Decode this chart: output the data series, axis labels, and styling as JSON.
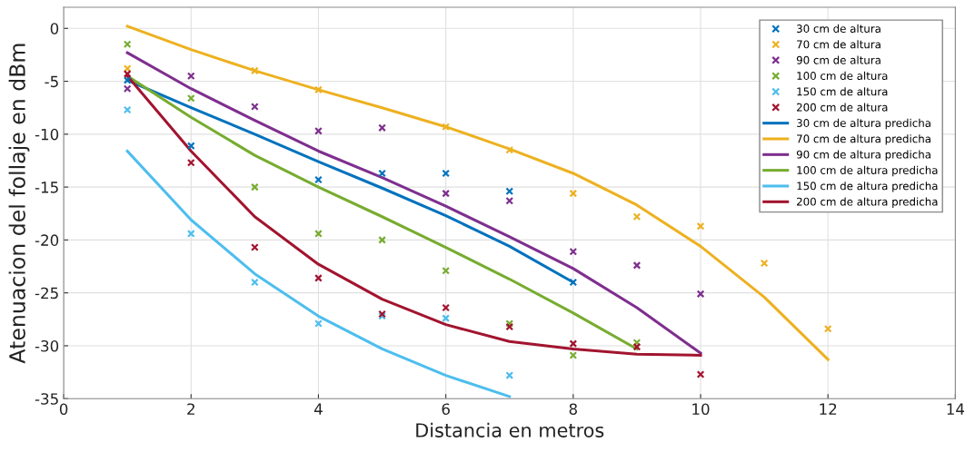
{
  "chart_data": {
    "type": "scatter",
    "xlabel": "Distancia en metros",
    "ylabel": "Atenuacion del follaje en dBm",
    "xlim": [
      0,
      14
    ],
    "xticks": [
      0,
      2,
      4,
      6,
      8,
      10,
      12,
      14
    ],
    "ylim": [
      -35,
      2
    ],
    "yticks": [
      0,
      -5,
      -10,
      -15,
      -20,
      -25,
      -30,
      -35
    ],
    "grid": true,
    "legend": "top right",
    "series": [
      {
        "name": "30 cm de altura",
        "marker": "cross",
        "color": "#0072bd",
        "x": [
          1,
          2,
          4,
          5,
          6,
          7,
          8
        ],
        "values": [
          -4.9,
          -11.1,
          -14.3,
          -13.7,
          -13.7,
          -15.4,
          -24.0
        ]
      },
      {
        "name": "70 cm de altura",
        "marker": "cross",
        "color": "#edb120",
        "x": [
          1,
          3,
          4,
          6,
          7,
          8,
          9,
          10,
          11,
          12
        ],
        "values": [
          -3.8,
          -4.0,
          -5.8,
          -9.3,
          -11.5,
          -15.6,
          -17.8,
          -18.7,
          -22.2,
          -28.4
        ]
      },
      {
        "name": "90 cm de altura",
        "marker": "cross",
        "color": "#7e2f8e",
        "x": [
          1,
          2,
          3,
          4,
          5,
          6,
          7,
          8,
          9,
          10
        ],
        "values": [
          -5.7,
          -4.5,
          -7.4,
          -9.7,
          -9.4,
          -15.6,
          -16.3,
          -21.1,
          -22.4,
          -25.1
        ]
      },
      {
        "name": "100 cm de altura",
        "marker": "cross",
        "color": "#77ac30",
        "x": [
          1,
          2,
          3,
          4,
          5,
          6,
          7,
          8,
          9
        ],
        "values": [
          -1.5,
          -6.6,
          -15.0,
          -19.4,
          -20.0,
          -22.9,
          -27.9,
          -30.9,
          -29.7
        ]
      },
      {
        "name": "150 cm de altura",
        "marker": "cross",
        "color": "#4dbeee",
        "x": [
          1,
          2,
          3,
          4,
          5,
          6,
          7
        ],
        "values": [
          -7.7,
          -19.4,
          -24.0,
          -27.9,
          -27.2,
          -27.4,
          -32.8
        ]
      },
      {
        "name": "200 cm de altura",
        "marker": "cross",
        "color": "#a2142f",
        "x": [
          1,
          2,
          3,
          4,
          5,
          6,
          7,
          8,
          9,
          10
        ],
        "values": [
          -4.3,
          -12.7,
          -20.7,
          -23.6,
          -27.0,
          -26.4,
          -28.2,
          -29.8,
          -30.1,
          -32.7
        ]
      },
      {
        "name": "30 cm de altura predicha",
        "type": "line",
        "color": "#0072bd",
        "x": [
          1,
          2,
          3,
          4,
          5,
          6,
          7,
          8
        ],
        "values": [
          -4.9,
          -7.5,
          -10.0,
          -12.6,
          -15.1,
          -17.7,
          -20.6,
          -24.0
        ]
      },
      {
        "name": "70 cm de altura predicha",
        "type": "line",
        "color": "#edb120",
        "x": [
          1,
          2,
          3,
          4,
          5,
          6,
          7,
          8,
          9,
          10,
          11,
          12
        ],
        "values": [
          0.2,
          -2.0,
          -4.0,
          -5.8,
          -7.5,
          -9.3,
          -11.4,
          -13.7,
          -16.7,
          -20.6,
          -25.4,
          -31.3
        ]
      },
      {
        "name": "90 cm de altura predicha",
        "type": "line",
        "color": "#7e2f8e",
        "x": [
          1,
          2,
          3,
          4,
          5,
          6,
          7,
          8,
          9,
          10
        ],
        "values": [
          -2.3,
          -5.7,
          -8.7,
          -11.6,
          -14.1,
          -16.8,
          -19.7,
          -22.7,
          -26.4,
          -30.7
        ]
      },
      {
        "name": "100 cm de altura predicha",
        "type": "line",
        "color": "#77ac30",
        "x": [
          1,
          2,
          3,
          4,
          5,
          6,
          7,
          8,
          9
        ],
        "values": [
          -4.5,
          -8.4,
          -12.0,
          -15.0,
          -17.8,
          -20.7,
          -23.7,
          -26.9,
          -30.3
        ]
      },
      {
        "name": "150 cm de altura predicha",
        "type": "line",
        "color": "#4dbeee",
        "x": [
          1,
          2,
          3,
          4,
          5,
          6,
          7
        ],
        "values": [
          -11.6,
          -18.1,
          -23.2,
          -27.2,
          -30.3,
          -32.8,
          -34.8
        ]
      },
      {
        "name": "200 cm de altura predicha",
        "type": "line",
        "color": "#a2142f",
        "x": [
          1,
          2,
          3,
          4,
          5,
          6,
          7,
          8,
          9,
          10
        ],
        "values": [
          -4.5,
          -11.6,
          -17.8,
          -22.3,
          -25.6,
          -28.0,
          -29.6,
          -30.3,
          -30.8,
          -30.9
        ]
      }
    ]
  }
}
